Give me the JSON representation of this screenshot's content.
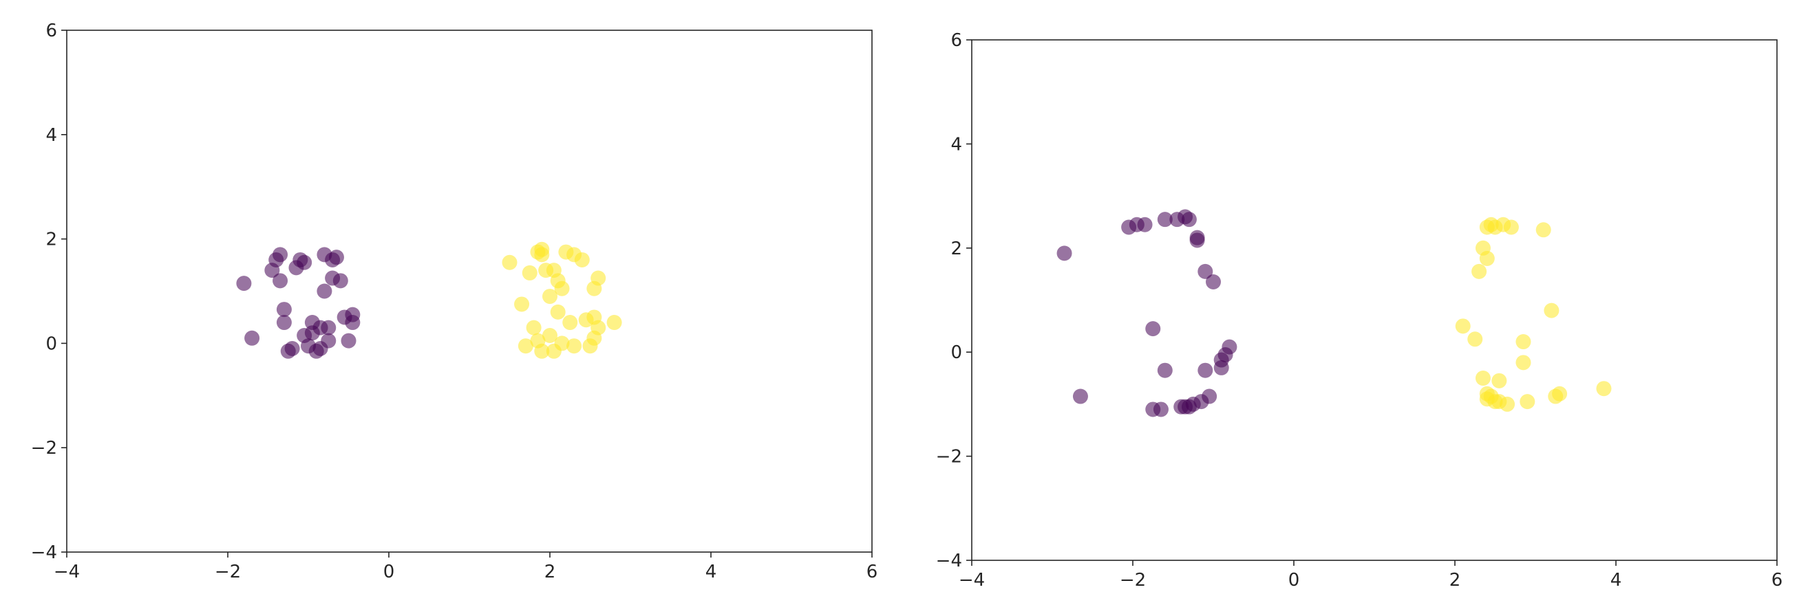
{
  "chart_data": [
    {
      "type": "scatter",
      "title": "",
      "xlabel": "",
      "ylabel": "",
      "xlim": [
        -4,
        6
      ],
      "ylim": [
        -4,
        6
      ],
      "xticks": [
        "−4",
        "−2",
        "0",
        "2",
        "4",
        "6"
      ],
      "yticks": [
        "−4",
        "−2",
        "0",
        "2",
        "4",
        "6"
      ],
      "grid": false,
      "marker_alpha": 0.55,
      "series": [
        {
          "color": "#440154",
          "points": [
            [
              -1.8,
              1.15
            ],
            [
              -1.7,
              0.1
            ],
            [
              -1.45,
              1.4
            ],
            [
              -1.4,
              1.6
            ],
            [
              -1.35,
              1.7
            ],
            [
              -1.35,
              1.2
            ],
            [
              -1.3,
              0.65
            ],
            [
              -1.3,
              0.4
            ],
            [
              -1.2,
              -0.1
            ],
            [
              -1.15,
              1.45
            ],
            [
              -1.1,
              1.6
            ],
            [
              -1.05,
              1.55
            ],
            [
              -1.0,
              -0.05
            ],
            [
              -0.95,
              0.2
            ],
            [
              -0.95,
              0.4
            ],
            [
              -0.9,
              -0.15
            ],
            [
              -0.85,
              0.3
            ],
            [
              -0.8,
              1.7
            ],
            [
              -0.8,
              1.0
            ],
            [
              -0.75,
              0.05
            ],
            [
              -0.75,
              0.3
            ],
            [
              -0.7,
              1.6
            ],
            [
              -0.7,
              1.25
            ],
            [
              -0.65,
              1.65
            ],
            [
              -0.6,
              1.2
            ],
            [
              -0.55,
              0.5
            ],
            [
              -0.5,
              0.05
            ],
            [
              -0.45,
              0.55
            ],
            [
              -0.45,
              0.4
            ],
            [
              -1.25,
              -0.15
            ],
            [
              -0.85,
              -0.1
            ],
            [
              -1.05,
              0.15
            ]
          ]
        },
        {
          "color": "#fde725",
          "points": [
            [
              1.5,
              1.55
            ],
            [
              1.65,
              0.75
            ],
            [
              1.7,
              -0.05
            ],
            [
              1.75,
              1.35
            ],
            [
              1.8,
              0.3
            ],
            [
              1.85,
              1.75
            ],
            [
              1.9,
              1.8
            ],
            [
              1.9,
              1.7
            ],
            [
              1.9,
              -0.15
            ],
            [
              1.95,
              1.4
            ],
            [
              2.0,
              0.9
            ],
            [
              2.05,
              1.4
            ],
            [
              2.05,
              -0.15
            ],
            [
              2.1,
              1.2
            ],
            [
              2.1,
              0.6
            ],
            [
              2.15,
              1.05
            ],
            [
              2.15,
              0.0
            ],
            [
              2.2,
              1.75
            ],
            [
              2.25,
              0.4
            ],
            [
              2.3,
              1.7
            ],
            [
              2.3,
              -0.05
            ],
            [
              2.4,
              1.6
            ],
            [
              2.45,
              0.45
            ],
            [
              2.5,
              -0.05
            ],
            [
              2.55,
              1.05
            ],
            [
              2.55,
              0.5
            ],
            [
              2.55,
              0.1
            ],
            [
              2.6,
              1.25
            ],
            [
              2.6,
              0.3
            ],
            [
              2.8,
              0.4
            ],
            [
              1.85,
              0.05
            ],
            [
              2.0,
              0.15
            ]
          ]
        }
      ]
    },
    {
      "type": "scatter",
      "title": "",
      "xlabel": "",
      "ylabel": "",
      "xlim": [
        -4,
        6
      ],
      "ylim": [
        -4,
        6
      ],
      "xticks": [
        "−4",
        "−2",
        "0",
        "2",
        "4",
        "6"
      ],
      "yticks": [
        "−4",
        "−2",
        "0",
        "2",
        "4",
        "6"
      ],
      "grid": false,
      "marker_alpha": 0.55,
      "series": [
        {
          "color": "#440154",
          "points": [
            [
              -2.85,
              1.9
            ],
            [
              -2.65,
              -0.85
            ],
            [
              -2.05,
              2.4
            ],
            [
              -1.95,
              2.45
            ],
            [
              -1.85,
              2.45
            ],
            [
              -1.75,
              0.45
            ],
            [
              -1.75,
              -1.1
            ],
            [
              -1.65,
              -1.1
            ],
            [
              -1.6,
              2.55
            ],
            [
              -1.6,
              -0.35
            ],
            [
              -1.45,
              2.55
            ],
            [
              -1.35,
              2.6
            ],
            [
              -1.3,
              2.55
            ],
            [
              -1.35,
              -1.05
            ],
            [
              -1.3,
              -1.05
            ],
            [
              -1.25,
              -1.0
            ],
            [
              -1.2,
              2.15
            ],
            [
              -1.15,
              -0.95
            ],
            [
              -1.1,
              -0.35
            ],
            [
              -1.1,
              1.55
            ],
            [
              -1.05,
              -0.85
            ],
            [
              -1.0,
              1.35
            ],
            [
              -0.9,
              -0.3
            ],
            [
              -0.9,
              -0.15
            ],
            [
              -0.85,
              -0.05
            ],
            [
              -0.8,
              0.1
            ],
            [
              -1.2,
              2.2
            ],
            [
              -1.4,
              -1.05
            ]
          ]
        },
        {
          "color": "#fde725",
          "points": [
            [
              2.1,
              0.5
            ],
            [
              2.25,
              0.25
            ],
            [
              2.3,
              1.55
            ],
            [
              2.35,
              2.0
            ],
            [
              2.35,
              -0.5
            ],
            [
              2.4,
              2.4
            ],
            [
              2.4,
              1.8
            ],
            [
              2.4,
              -0.8
            ],
            [
              2.4,
              -0.9
            ],
            [
              2.45,
              2.45
            ],
            [
              2.5,
              2.4
            ],
            [
              2.5,
              -0.95
            ],
            [
              2.55,
              -0.55
            ],
            [
              2.6,
              2.45
            ],
            [
              2.65,
              -1.0
            ],
            [
              2.7,
              2.4
            ],
            [
              2.85,
              0.2
            ],
            [
              2.85,
              -0.2
            ],
            [
              2.9,
              -0.95
            ],
            [
              3.1,
              2.35
            ],
            [
              3.2,
              0.8
            ],
            [
              3.25,
              -0.85
            ],
            [
              3.3,
              -0.8
            ],
            [
              3.85,
              -0.7
            ],
            [
              2.45,
              -0.85
            ],
            [
              2.55,
              -0.95
            ]
          ]
        }
      ]
    }
  ]
}
